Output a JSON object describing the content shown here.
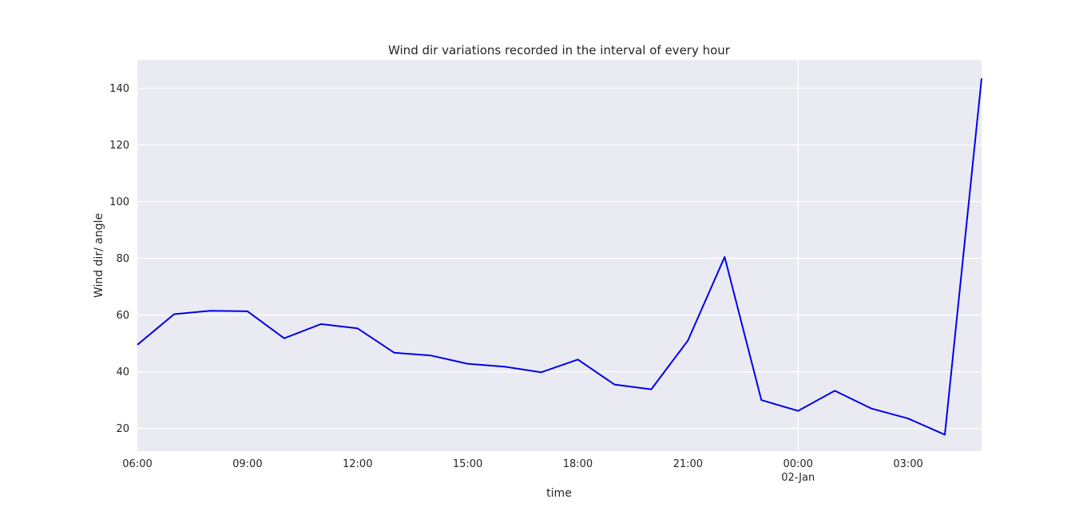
{
  "chart_data": {
    "type": "line",
    "title": "Wind dir variations recorded in the interval of every hour",
    "xlabel": "time",
    "ylabel": "Wind dir/ angle",
    "x_ticks": [
      {
        "value": 0,
        "label": "06:00",
        "sublabel": ""
      },
      {
        "value": 3,
        "label": "09:00",
        "sublabel": ""
      },
      {
        "value": 6,
        "label": "12:00",
        "sublabel": ""
      },
      {
        "value": 9,
        "label": "15:00",
        "sublabel": ""
      },
      {
        "value": 12,
        "label": "18:00",
        "sublabel": ""
      },
      {
        "value": 15,
        "label": "21:00",
        "sublabel": ""
      },
      {
        "value": 18,
        "label": "00:00",
        "sublabel": "02-Jan"
      },
      {
        "value": 21,
        "label": "03:00",
        "sublabel": ""
      }
    ],
    "y_ticks": [
      20,
      40,
      60,
      80,
      100,
      120,
      140
    ],
    "xlim": [
      0,
      23
    ],
    "ylim": [
      12,
      150
    ],
    "grid": true,
    "series": [
      {
        "color": "#0000ee",
        "x": [
          0,
          1,
          2,
          3,
          4,
          5,
          6,
          7,
          8,
          9,
          10,
          11,
          12,
          13,
          14,
          15,
          16,
          17,
          18,
          19,
          20,
          21,
          22,
          23
        ],
        "values": [
          49.5,
          60.3,
          61.5,
          61.3,
          51.8,
          56.8,
          55.3,
          46.7,
          45.7,
          42.8,
          41.8,
          39.8,
          44.3,
          35.5,
          33.8,
          51.0,
          80.5,
          30.0,
          26.2,
          33.3,
          27.0,
          23.5,
          17.8,
          143.5
        ]
      }
    ]
  }
}
